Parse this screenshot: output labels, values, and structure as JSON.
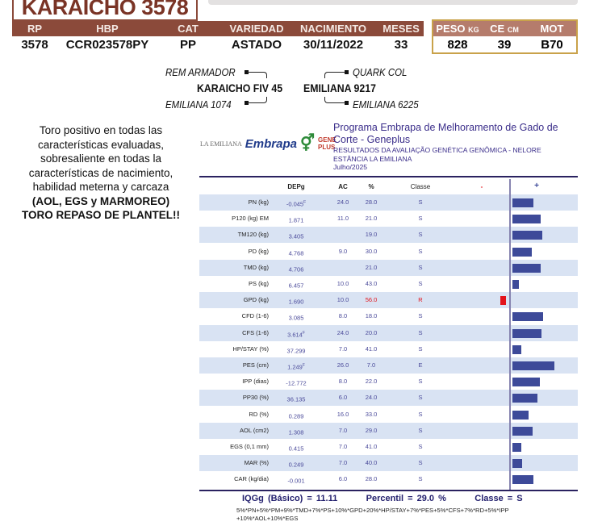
{
  "title": "KARAICHO 3578",
  "info": {
    "headers": [
      "RP",
      "HBP",
      "CAT",
      "VARIEDAD",
      "NACIMIENTO",
      "MESES"
    ],
    "values": [
      "3578",
      "CCR023578PY",
      "PP",
      "ASTADO",
      "30/11/2022",
      "33"
    ]
  },
  "measures": {
    "headers": [
      {
        "main": "PESO",
        "unit": "KG"
      },
      {
        "main": "CE",
        "unit": "CM"
      },
      {
        "main": "MOT",
        "unit": ""
      }
    ],
    "values": [
      "828",
      "39",
      "B70"
    ]
  },
  "pedigree": {
    "sire": "KARAICHO FIV 45",
    "sire_sire": "REM ARMADOR",
    "sire_dam": "EMILIANA 1074",
    "dam": "EMILIANA 9217",
    "dam_sire": "QUARK COL",
    "dam_dam": "EMILIANA 6225"
  },
  "description": {
    "text": "Toro positivo en todas las características evaluadas, sobresaliente en todas la características de nacimiento, habilidad meterna y carcaza",
    "bold1": "(AOL, EGS y MARMOREO)",
    "bold2": "TORO REPASO DE PLANTEL!!"
  },
  "report": {
    "logo_la": "LA EMILIANA",
    "logo_embrapa": "Embrapa",
    "logo_gene": "GENE",
    "logo_plus": "PLUS",
    "program": "Programa Embrapa de Melhoramento de Gado de Corte - Geneplus",
    "subtitle": "RESULTADOS DA AVALIAÇÃO GENÉTICA GENÔMICA - NELORE",
    "farm": "ESTÂNCIA LA EMILIANA",
    "date": "Julho/2025",
    "columns": {
      "dep": "DEPg",
      "ac": "AC",
      "pct": "%",
      "classe": "Classe",
      "minus": "-",
      "plus": "+"
    },
    "colors": {
      "bar": "#3d4a99",
      "negative_bar": "#e3141b",
      "row_alt": "#d9e3f3"
    },
    "rows": [
      {
        "trait": "PN (kg)",
        "dep": "-0.045",
        "sup": "F",
        "ac": "24.0",
        "pct": "28.0",
        "classe": "S"
      },
      {
        "trait": "P120 (kg) EM",
        "dep": "1.871",
        "sup": "",
        "ac": "11.0",
        "pct": "21.0",
        "classe": "S"
      },
      {
        "trait": "TM120 (kg)",
        "dep": "3.405",
        "sup": "",
        "ac": "",
        "pct": "19.0",
        "classe": "S"
      },
      {
        "trait": "PD (kg)",
        "dep": "4.768",
        "sup": "",
        "ac": "9.0",
        "pct": "30.0",
        "classe": "S"
      },
      {
        "trait": "TMD (kg)",
        "dep": "4.706",
        "sup": "",
        "ac": "",
        "pct": "21.0",
        "classe": "S"
      },
      {
        "trait": "PS (kg)",
        "dep": "6.457",
        "sup": "",
        "ac": "10.0",
        "pct": "43.0",
        "classe": "S"
      },
      {
        "trait": "GPD (kg)",
        "dep": "1.690",
        "sup": "",
        "ac": "10.0",
        "pct": "56.0",
        "classe": "R"
      },
      {
        "trait": "CFD (1-6)",
        "dep": "3.085",
        "sup": "",
        "ac": "8.0",
        "pct": "18.0",
        "classe": "S"
      },
      {
        "trait": "CFS (1-6)",
        "dep": "3.614",
        "sup": "F",
        "ac": "24.0",
        "pct": "20.0",
        "classe": "S"
      },
      {
        "trait": "HP/STAY (%)",
        "dep": "37.299",
        "sup": "",
        "ac": "7.0",
        "pct": "41.0",
        "classe": "S"
      },
      {
        "trait": "PES (cm)",
        "dep": "1.249",
        "sup": "F",
        "ac": "26.0",
        "pct": "7.0",
        "classe": "E"
      },
      {
        "trait": "IPP (dias)",
        "dep": "-12.772",
        "sup": "",
        "ac": "8.0",
        "pct": "22.0",
        "classe": "S"
      },
      {
        "trait": "PP30 (%)",
        "dep": "36.135",
        "sup": "",
        "ac": "6.0",
        "pct": "24.0",
        "classe": "S"
      },
      {
        "trait": "RD (%)",
        "dep": "0.289",
        "sup": "",
        "ac": "16.0",
        "pct": "33.0",
        "classe": "S"
      },
      {
        "trait": "AOL (cm2)",
        "dep": "1.308",
        "sup": "",
        "ac": "7.0",
        "pct": "29.0",
        "classe": "S"
      },
      {
        "trait": "EGS (0,1 mm)",
        "dep": "0.415",
        "sup": "",
        "ac": "7.0",
        "pct": "41.0",
        "classe": "S"
      },
      {
        "trait": "MAR (%)",
        "dep": "0.249",
        "sup": "",
        "ac": "7.0",
        "pct": "40.0",
        "classe": "S"
      },
      {
        "trait": "CAR (kg/dia)",
        "dep": "-0.001",
        "sup": "",
        "ac": "6.0",
        "pct": "28.0",
        "classe": "S"
      }
    ],
    "iqg": "IQGg (Básico) = 11.11",
    "percentil": "Percentil = 29.0 %",
    "classe": "Classe = S",
    "formula": "5%*PN+5%*PM+9%*TMD+7%*PS+10%*GPD+20%*HP/STAY+7%*PES+5%*CFS+7%*RD+5%*IPP +10%*AOL+10%*EGS"
  }
}
